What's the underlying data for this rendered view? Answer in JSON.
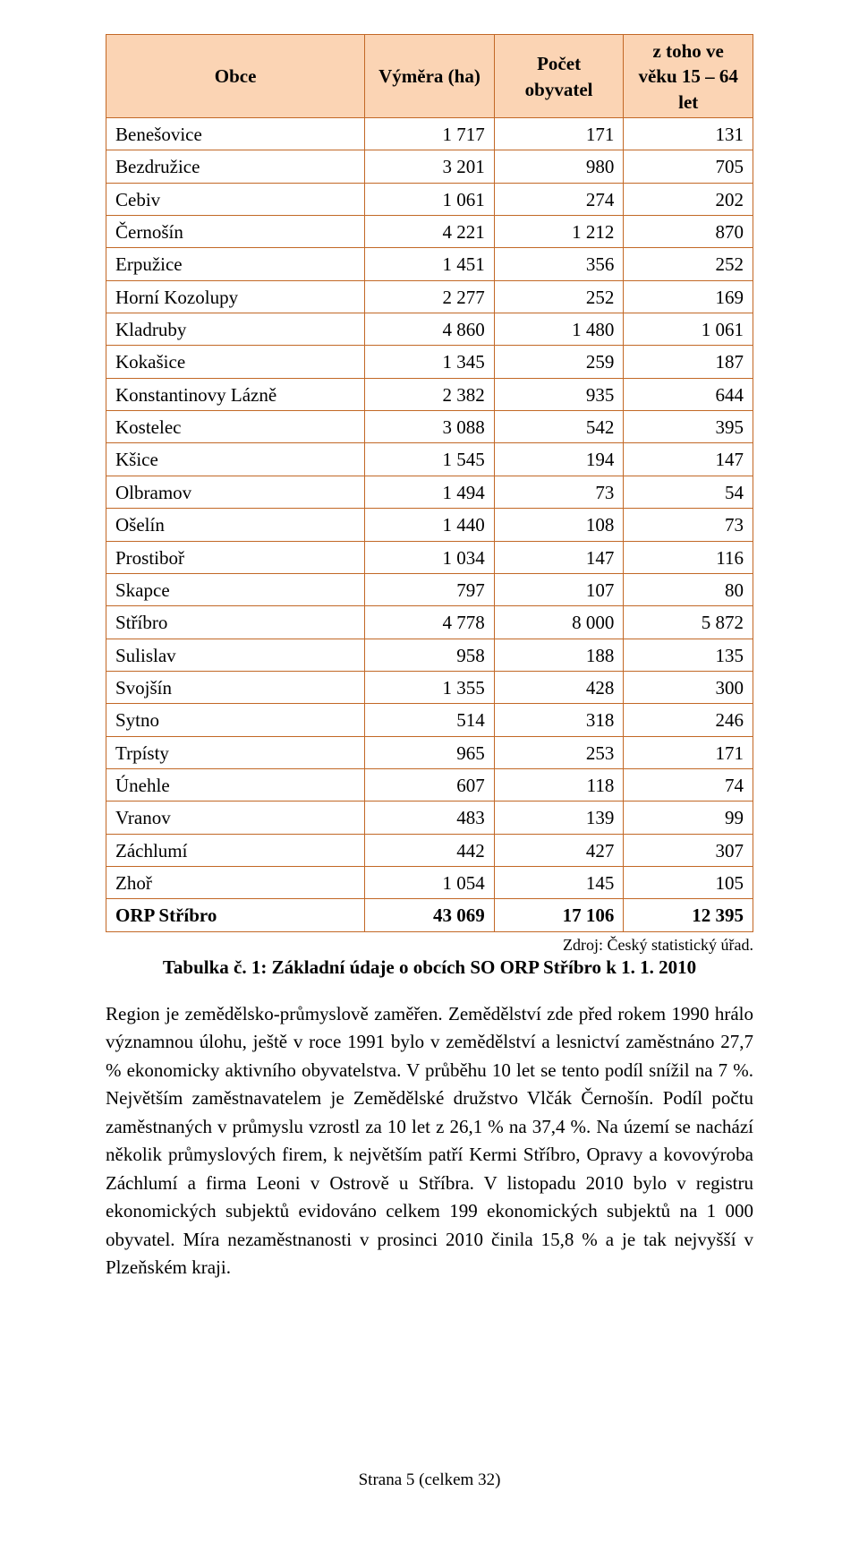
{
  "table": {
    "headers": [
      "Obce",
      "Výměra (ha)",
      "Počet obyvatel",
      "z toho ve věku 15 – 64 let"
    ],
    "rows": [
      [
        "Benešovice",
        "1 717",
        "171",
        "131"
      ],
      [
        "Bezdružice",
        "3 201",
        "980",
        "705"
      ],
      [
        "Cebiv",
        "1 061",
        "274",
        "202"
      ],
      [
        "Černošín",
        "4 221",
        "1 212",
        "870"
      ],
      [
        "Erpužice",
        "1 451",
        "356",
        "252"
      ],
      [
        "Horní Kozolupy",
        "2 277",
        "252",
        "169"
      ],
      [
        "Kladruby",
        "4 860",
        "1 480",
        "1 061"
      ],
      [
        "Kokašice",
        "1 345",
        "259",
        "187"
      ],
      [
        "Konstantinovy Lázně",
        "2 382",
        "935",
        "644"
      ],
      [
        "Kostelec",
        "3 088",
        "542",
        "395"
      ],
      [
        "Kšice",
        "1 545",
        "194",
        "147"
      ],
      [
        "Olbramov",
        "1 494",
        "73",
        "54"
      ],
      [
        "Ošelín",
        "1 440",
        "108",
        "73"
      ],
      [
        "Prostiboř",
        "1 034",
        "147",
        "116"
      ],
      [
        "Skapce",
        "797",
        "107",
        "80"
      ],
      [
        "Stříbro",
        "4 778",
        "8 000",
        "5 872"
      ],
      [
        "Sulislav",
        "958",
        "188",
        "135"
      ],
      [
        "Svojšín",
        "1 355",
        "428",
        "300"
      ],
      [
        "Sytno",
        "514",
        "318",
        "246"
      ],
      [
        "Trpísty",
        "965",
        "253",
        "171"
      ],
      [
        "Únehle",
        "607",
        "118",
        "74"
      ],
      [
        "Vranov",
        "483",
        "139",
        "99"
      ],
      [
        "Záchlumí",
        "442",
        "427",
        "307"
      ],
      [
        "Zhoř",
        "1 054",
        "145",
        "105"
      ]
    ],
    "total": [
      "ORP Stříbro",
      "43 069",
      "17 106",
      "12 395"
    ],
    "col_widths": [
      "40%",
      "20%",
      "20%",
      "20%"
    ],
    "header_bg": "#fbd4b4",
    "border_color": "#c26826"
  },
  "source_line": "Zdroj: Český statistický úřad.",
  "caption": "Tabulka č. 1: Základní údaje o obcích SO ORP Stříbro k 1. 1. 2010",
  "paragraph": "Region je zemědělsko-průmyslově zaměřen. Zemědělství zde před rokem 1990 hrálo významnou úlohu, ještě v roce 1991 bylo v zemědělství a lesnictví zaměstnáno 27,7 % ekonomicky aktivního obyvatelstva. V průběhu 10 let se tento podíl snížil na 7 %. Největším zaměstnavatelem je Zemědělské družstvo Vlčák Černošín. Podíl počtu zaměstnaných v průmyslu vzrostl za 10 let z 26,1 % na 37,4 %. Na území se nachází několik průmyslových firem, k největším patří Kermi Stříbro, Opravy a kovovýroba Záchlumí a firma Leoni v Ostrově u Stříbra. V listopadu 2010 bylo v registru ekonomických subjektů evidováno celkem 199 ekonomických subjektů na 1 000 obyvatel. Míra nezaměstnanosti v prosinci 2010 činila 15,8 % a je tak nejvyšší v Plzeňském kraji.",
  "footer": "Strana 5 (celkem 32)"
}
